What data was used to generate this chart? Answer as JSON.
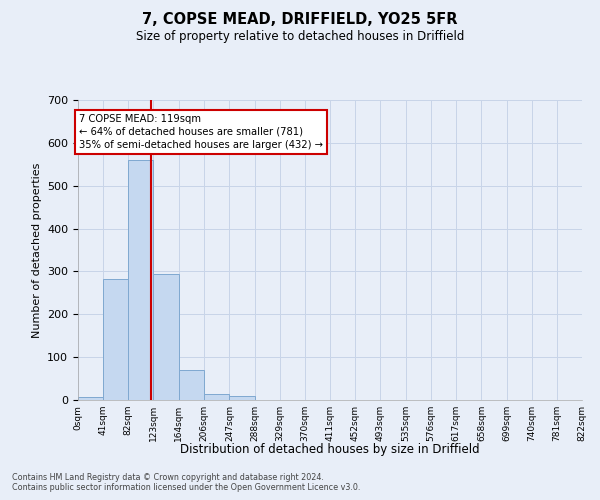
{
  "title": "7, COPSE MEAD, DRIFFIELD, YO25 5FR",
  "subtitle": "Size of property relative to detached houses in Driffield",
  "xlabel": "Distribution of detached houses by size in Driffield",
  "ylabel": "Number of detached properties",
  "bar_edges": [
    0,
    41,
    82,
    123,
    164,
    206,
    247,
    288,
    329,
    370,
    411,
    452,
    493,
    535,
    576,
    617,
    658,
    699,
    740,
    781,
    822
  ],
  "bar_heights": [
    8,
    283,
    560,
    293,
    70,
    14,
    10,
    0,
    0,
    0,
    0,
    0,
    0,
    0,
    0,
    0,
    0,
    0,
    0,
    0
  ],
  "bar_color": "#c5d8f0",
  "bar_edgecolor": "#7fa8d0",
  "property_line_x": 119,
  "property_line_color": "#cc0000",
  "annotation_line1": "7 COPSE MEAD: 119sqm",
  "annotation_line2": "← 64% of detached houses are smaller (781)",
  "annotation_line3": "35% of semi-detached houses are larger (432) →",
  "annotation_box_edgecolor": "#cc0000",
  "annotation_box_facecolor": "#ffffff",
  "ylim": [
    0,
    700
  ],
  "yticks": [
    0,
    100,
    200,
    300,
    400,
    500,
    600,
    700
  ],
  "grid_color": "#c8d4e8",
  "background_color": "#e8eef8",
  "footer_line1": "Contains HM Land Registry data © Crown copyright and database right 2024.",
  "footer_line2": "Contains public sector information licensed under the Open Government Licence v3.0."
}
